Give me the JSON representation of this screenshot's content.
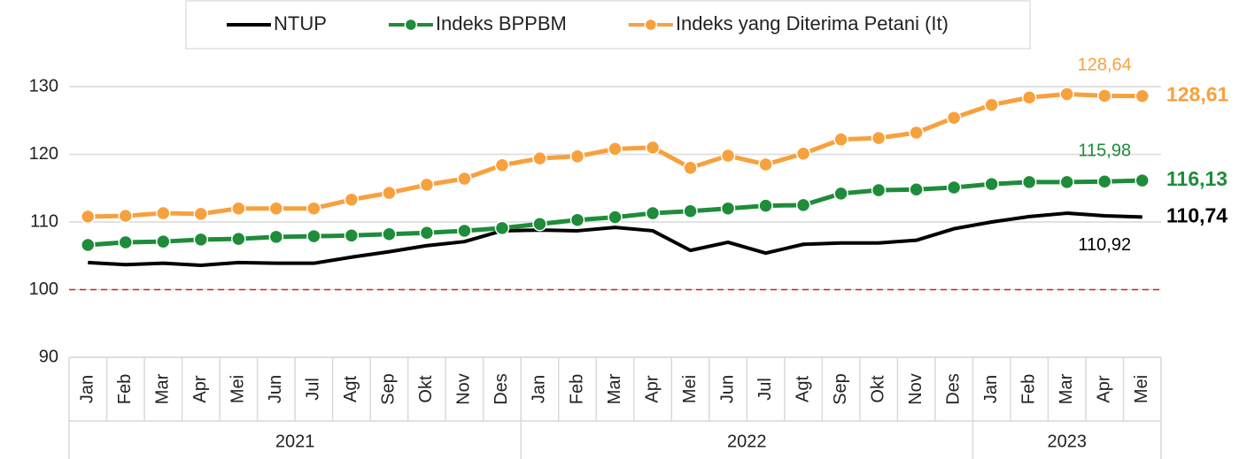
{
  "chart_data": {
    "type": "line",
    "category_groups": [
      {
        "label": "2021",
        "categories": [
          "Jan",
          "Feb",
          "Mar",
          "Apr",
          "Mei",
          "Jun",
          "Jul",
          "Agt",
          "Sep",
          "Okt",
          "Nov",
          "Des"
        ]
      },
      {
        "label": "2022",
        "categories": [
          "Jan",
          "Feb",
          "Mar",
          "Apr",
          "Mei",
          "Jun",
          "Jul",
          "Agt",
          "Sep",
          "Okt",
          "Nov",
          "Des"
        ]
      },
      {
        "label": "2023",
        "categories": [
          "Jan",
          "Feb",
          "Mar",
          "Apr",
          "Mei"
        ]
      }
    ],
    "series": [
      {
        "name": "NTUP",
        "color": "#000000",
        "markers": false,
        "values": [
          104.0,
          103.7,
          103.9,
          103.6,
          104.0,
          103.9,
          103.9,
          104.8,
          105.6,
          106.5,
          107.1,
          108.7,
          108.8,
          108.7,
          109.2,
          108.7,
          105.8,
          107.0,
          105.4,
          106.7,
          106.9,
          106.9,
          107.3,
          109.0,
          110.0,
          110.8,
          111.3,
          110.92,
          110.74
        ],
        "value_labels": [
          null,
          null,
          null,
          null,
          null,
          null,
          null,
          null,
          null,
          null,
          null,
          null,
          null,
          null,
          null,
          null,
          null,
          null,
          null,
          null,
          null,
          null,
          null,
          null,
          null,
          null,
          null,
          "110,92",
          "110,74"
        ]
      },
      {
        "name": "Indeks BPPBM",
        "color": "#1e8c3a",
        "markers": true,
        "values": [
          106.6,
          107.0,
          107.1,
          107.4,
          107.5,
          107.8,
          107.9,
          108.0,
          108.2,
          108.4,
          108.7,
          109.1,
          109.7,
          110.3,
          110.7,
          111.3,
          111.6,
          112.0,
          112.4,
          112.5,
          114.2,
          114.7,
          114.8,
          115.1,
          115.6,
          115.9,
          115.9,
          115.98,
          116.13
        ],
        "value_labels": [
          null,
          null,
          null,
          null,
          null,
          null,
          null,
          null,
          null,
          null,
          null,
          null,
          null,
          null,
          null,
          null,
          null,
          null,
          null,
          null,
          null,
          null,
          null,
          null,
          null,
          null,
          null,
          "115,98",
          "116,13"
        ]
      },
      {
        "name": "Indeks yang Diterima Petani (It)",
        "color": "#f7a13e",
        "markers": true,
        "values": [
          110.8,
          110.9,
          111.3,
          111.2,
          112.0,
          112.0,
          112.0,
          113.3,
          114.3,
          115.5,
          116.4,
          118.4,
          119.4,
          119.7,
          120.8,
          121.0,
          118.0,
          119.8,
          118.5,
          120.1,
          122.2,
          122.4,
          123.2,
          125.4,
          127.3,
          128.4,
          128.9,
          128.64,
          128.61
        ],
        "value_labels": [
          null,
          null,
          null,
          null,
          null,
          null,
          null,
          null,
          null,
          null,
          null,
          null,
          null,
          null,
          null,
          null,
          null,
          null,
          null,
          null,
          null,
          null,
          null,
          null,
          null,
          null,
          null,
          "128,64",
          "128,61"
        ]
      }
    ],
    "ylim": [
      90,
      130
    ],
    "yticks": [
      90,
      100,
      110,
      120,
      130
    ],
    "grid": true,
    "reference_line": {
      "value": 100,
      "color": "#e02020"
    },
    "legend": "top"
  }
}
